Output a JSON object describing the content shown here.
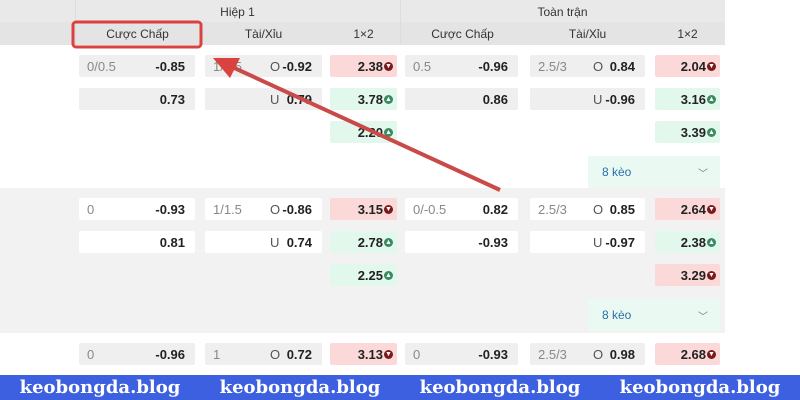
{
  "header": {
    "half": "Hiệp 1",
    "full": "Toàn trận",
    "cols": [
      "Cược Chấp",
      "Tài/Xỉu",
      "1×2"
    ]
  },
  "colors": {
    "down": "#fbd9d9",
    "up": "#e3f8ec",
    "down_icon": "#7a1a1a",
    "up_icon": "#3a8a62",
    "annotation": "#d9423f",
    "watermark_bg": "#3c60e0"
  },
  "groups": [
    {
      "rows": [
        {
          "h1_hcp": "0/0.5",
          "h1_hcp_odds": "-0.85",
          "h1_ou_line": "1/1.5",
          "h1_ou": "O",
          "h1_ou_odds": "-0.92",
          "h1_x2": "2.38",
          "h1_x2_dir": "down",
          "ft_hcp": "0.5",
          "ft_hcp_odds": "-0.96",
          "ft_ou_line": "2.5/3",
          "ft_ou": "O",
          "ft_ou_odds": "0.84",
          "ft_x2": "2.04",
          "ft_x2_dir": "down"
        },
        {
          "h1_hcp": "",
          "h1_hcp_odds": "0.73",
          "h1_ou_line": "",
          "h1_ou": "U",
          "h1_ou_odds": "0.79",
          "h1_x2": "3.78",
          "h1_x2_dir": "up",
          "ft_hcp": "",
          "ft_hcp_odds": "0.86",
          "ft_ou_line": "",
          "ft_ou": "U",
          "ft_ou_odds": "-0.96",
          "ft_x2": "3.16",
          "ft_x2_dir": "up"
        },
        {
          "h1_x2": "2.20",
          "h1_x2_dir": "up",
          "ft_x2": "3.39",
          "ft_x2_dir": "up"
        }
      ],
      "more": "8 kèo"
    },
    {
      "rows": [
        {
          "h1_hcp": "0",
          "h1_hcp_odds": "-0.93",
          "h1_ou_line": "1/1.5",
          "h1_ou": "O",
          "h1_ou_odds": "-0.86",
          "h1_x2": "3.15",
          "h1_x2_dir": "down",
          "ft_hcp": "0/-0.5",
          "ft_hcp_odds": "0.82",
          "ft_ou_line": "2.5/3",
          "ft_ou": "O",
          "ft_ou_odds": "0.85",
          "ft_x2": "2.64",
          "ft_x2_dir": "down"
        },
        {
          "h1_hcp": "",
          "h1_hcp_odds": "0.81",
          "h1_ou_line": "",
          "h1_ou": "U",
          "h1_ou_odds": "0.74",
          "h1_x2": "2.78",
          "h1_x2_dir": "up",
          "ft_hcp": "",
          "ft_hcp_odds": "-0.93",
          "ft_ou_line": "",
          "ft_ou": "U",
          "ft_ou_odds": "-0.97",
          "ft_x2": "2.38",
          "ft_x2_dir": "up"
        },
        {
          "h1_x2": "2.25",
          "h1_x2_dir": "up",
          "ft_x2": "3.29",
          "ft_x2_dir": "down"
        }
      ],
      "more": "8 kèo"
    },
    {
      "rows": [
        {
          "h1_hcp": "0",
          "h1_hcp_odds": "-0.96",
          "h1_ou_line": "1",
          "h1_ou": "O",
          "h1_ou_odds": "0.72",
          "h1_x2": "3.13",
          "h1_x2_dir": "down",
          "ft_hcp": "0",
          "ft_hcp_odds": "-0.93",
          "ft_ou_line": "2.5/3",
          "ft_ou": "O",
          "ft_ou_odds": "0.98",
          "ft_x2": "2.68",
          "ft_x2_dir": "down"
        }
      ]
    }
  ],
  "watermark": [
    "keobongda.blog",
    "keobongda.blog",
    "keobongda.blog",
    "keobongda.blog"
  ]
}
